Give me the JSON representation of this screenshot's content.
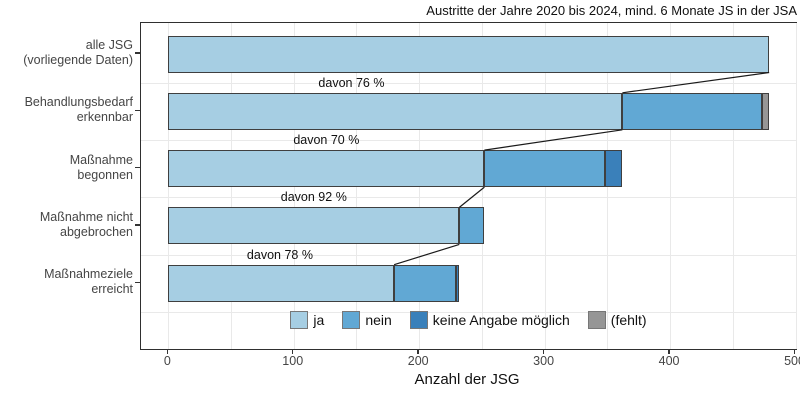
{
  "title": "Austritte der Jahre 2020 bis 2024, mind. 6 Monate JS in der JSA",
  "chart_data": {
    "type": "bar",
    "orientation": "horizontal-stacked",
    "title": "Austritte der Jahre 2020 bis 2024, mind. 6 Monate JS in der JSA",
    "xlabel": "Anzahl der JSG",
    "ylabel": "",
    "xlim": [
      -22,
      500
    ],
    "x_ticks": [
      0,
      100,
      200,
      300,
      400,
      500
    ],
    "x_minor_step": 50,
    "grid": true,
    "legend_position": "bottom-inside",
    "series_names": [
      "ja",
      "nein",
      "keine Angabe möglich",
      "(fehlt)"
    ],
    "series_colors": {
      "ja": "#a6cee3",
      "nein": "#61a8d4",
      "keine Angabe möglich": "#3a80ba",
      "(fehlt)": "#969696"
    },
    "categories": [
      {
        "label_lines": [
          "alle JSG",
          "(vorliegende Daten)"
        ],
        "segments": [
          {
            "name": "ja",
            "value": 479
          }
        ]
      },
      {
        "label_lines": [
          "Behandlungsbedarf",
          "erkennbar"
        ],
        "segments": [
          {
            "name": "ja",
            "value": 362
          },
          {
            "name": "nein",
            "value": 111
          },
          {
            "name": "(fehlt)",
            "value": 6
          }
        ],
        "annotation": {
          "text": "davon 76 %",
          "percent": 76,
          "x": 146
        }
      },
      {
        "label_lines": [
          "Maßnahme",
          "begonnen"
        ],
        "segments": [
          {
            "name": "ja",
            "value": 252
          },
          {
            "name": "nein",
            "value": 96
          },
          {
            "name": "keine Angabe möglich",
            "value": 14
          }
        ],
        "annotation": {
          "text": "davon 70 %",
          "percent": 70,
          "x": 126
        }
      },
      {
        "label_lines": [
          "Maßnahme nicht",
          "abgebrochen"
        ],
        "segments": [
          {
            "name": "ja",
            "value": 232
          },
          {
            "name": "nein",
            "value": 20
          }
        ],
        "annotation": {
          "text": "davon 92 %",
          "percent": 92,
          "x": 116
        }
      },
      {
        "label_lines": [
          "Maßnahmeziele",
          "erreicht"
        ],
        "segments": [
          {
            "name": "ja",
            "value": 180
          },
          {
            "name": "nein",
            "value": 49
          },
          {
            "name": "keine Angabe möglich",
            "value": 3
          }
        ],
        "annotation": {
          "text": "davon 78 %",
          "percent": 78,
          "x": 89
        }
      }
    ]
  }
}
